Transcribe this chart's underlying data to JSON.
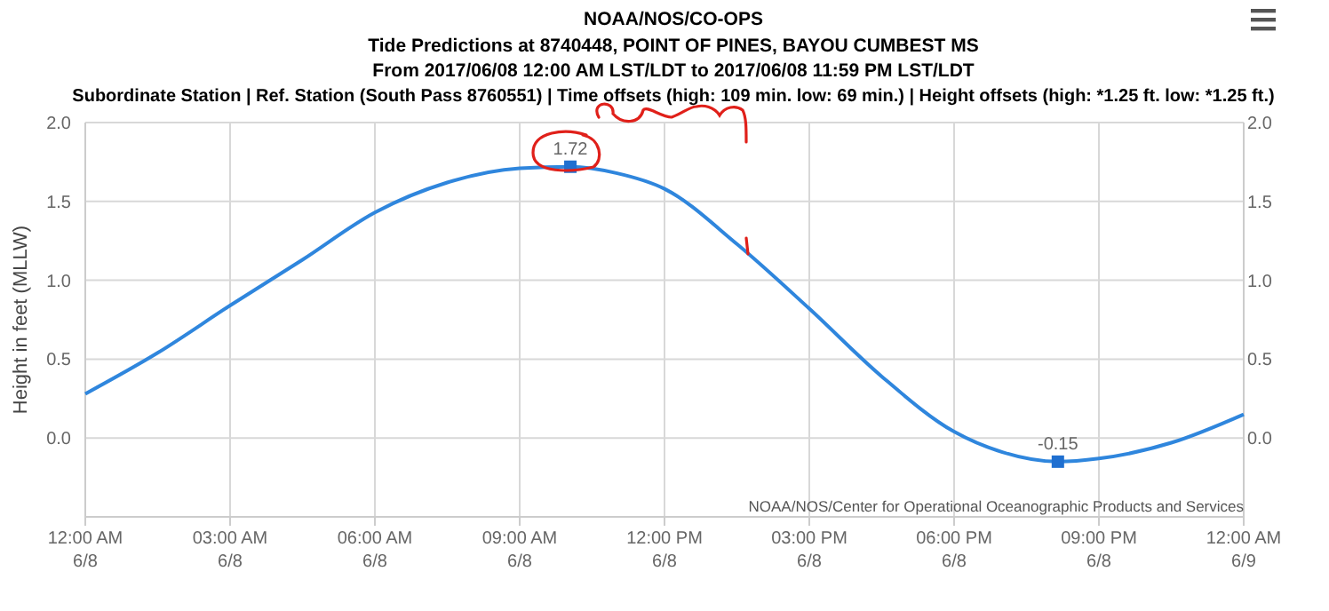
{
  "chart_data": {
    "type": "line",
    "title": "NOAA/NOS/CO-OPS",
    "subtitle": "Tide Predictions at 8740448, POINT OF PINES, BAYOU CUMBEST MS\nFrom 2017/06/08 12:00 AM LST/LDT to 2017/06/08 11:59 PM LST/LDT\nSubordinate Station | Ref. Station (South Pass 8760551) | Time offsets (high: 109 min. low: 69 min.) | Height offsets (high: *1.25 ft. low: *1.25 ft.)",
    "ylabel": "Height in feet (MLLW)",
    "annotations": [
      "NOAA/NOS/Center for Operational Oceanographic Products and Services"
    ],
    "series": [
      {
        "color": "#2f86dd",
        "marker": "none",
        "x": [
          "2017-06-08T00:00",
          "2017-06-08T01:30",
          "2017-06-08T03:00",
          "2017-06-08T04:30",
          "2017-06-08T06:00",
          "2017-06-08T07:30",
          "2017-06-08T09:00",
          "2017-06-08T10:03",
          "2017-06-08T11:00",
          "2017-06-08T12:00",
          "2017-06-08T13:30",
          "2017-06-08T15:00",
          "2017-06-08T16:30",
          "2017-06-08T18:00",
          "2017-06-08T19:00",
          "2017-06-08T20:09",
          "2017-06-08T21:00",
          "2017-06-08T22:30",
          "2017-06-09T00:00"
        ],
        "values": [
          0.28,
          0.54,
          0.84,
          1.13,
          1.43,
          1.62,
          1.71,
          1.72,
          1.68,
          1.58,
          1.23,
          0.82,
          0.39,
          0.04,
          -0.09,
          -0.15,
          -0.13,
          -0.03,
          0.15
        ]
      },
      {
        "type": "scatter",
        "color": "#1f6fd0",
        "marker": "square",
        "data_labels": true,
        "x": [
          "2017-06-08T10:03",
          "2017-06-08T20:09"
        ],
        "values": [
          1.72,
          -0.15
        ]
      }
    ],
    "xlim": [
      "2017-06-08T00:00",
      "2017-06-09T00:00"
    ],
    "xticks": [
      {
        "value": "2017-06-08T00:00",
        "label": "12:00 AM\n6/8"
      },
      {
        "value": "2017-06-08T03:00",
        "label": "03:00 AM\n6/8"
      },
      {
        "value": "2017-06-08T06:00",
        "label": "06:00 AM\n6/8"
      },
      {
        "value": "2017-06-08T09:00",
        "label": "09:00 AM\n6/8"
      },
      {
        "value": "2017-06-08T12:00",
        "label": "12:00 PM\n6/8"
      },
      {
        "value": "2017-06-08T15:00",
        "label": "03:00 PM\n6/8"
      },
      {
        "value": "2017-06-08T18:00",
        "label": "06:00 PM\n6/8"
      },
      {
        "value": "2017-06-08T21:00",
        "label": "09:00 PM\n6/8"
      },
      {
        "value": "2017-06-09T00:00",
        "label": "12:00 AM\n6/9"
      }
    ],
    "ylim": [
      -0.5,
      2
    ],
    "yticks": [
      {
        "value": 0,
        "label": "0.0"
      },
      {
        "value": 0.5,
        "label": "0.5"
      },
      {
        "value": 1,
        "label": "1.0"
      },
      {
        "value": 1.5,
        "label": "1.5"
      },
      {
        "value": 2,
        "label": "2.0"
      }
    ],
    "y2lim": [
      -0.5,
      2
    ],
    "y2ticks": [
      {
        "value": 0,
        "label": "0.0"
      },
      {
        "value": 0.5,
        "label": "0.5"
      },
      {
        "value": 1,
        "label": "1.0"
      },
      {
        "value": 1.5,
        "label": "1.5"
      },
      {
        "value": 2,
        "label": "2.0"
      }
    ],
    "grid": true
  }
}
